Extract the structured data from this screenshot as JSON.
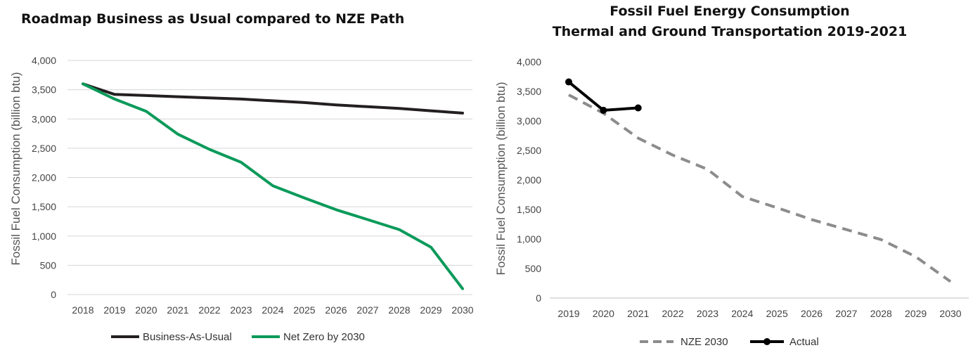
{
  "chart_data": [
    {
      "type": "line",
      "title": "Roadmap Business as Usual compared to NZE Path",
      "ylabel": "Fossil Fuel  Consumption (billion btu)",
      "xlabel": "",
      "x": [
        2018,
        2019,
        2020,
        2021,
        2022,
        2023,
        2024,
        2025,
        2026,
        2027,
        2028,
        2029,
        2030
      ],
      "ylim": [
        0,
        4000
      ],
      "yticks": [
        0,
        500,
        1000,
        1500,
        2000,
        2500,
        3000,
        3500,
        4000
      ],
      "ytick_labels": [
        "0",
        "500",
        "1,000",
        "1,500",
        "2,000",
        "2,500",
        "3,000",
        "3,500",
        "4,000"
      ],
      "grid": true,
      "legend_position": "bottom",
      "series": [
        {
          "name": "Business-As-Usual",
          "color": "#231f20",
          "style": "solid",
          "values": [
            3600,
            3420,
            3400,
            3380,
            3360,
            3340,
            3310,
            3280,
            3240,
            3210,
            3180,
            3140,
            3100
          ]
        },
        {
          "name": "Net Zero by 2030",
          "color": "#0b9a5a",
          "style": "solid",
          "values": [
            3600,
            3340,
            3130,
            2740,
            2480,
            2260,
            1860,
            1650,
            1450,
            1280,
            1110,
            810,
            100
          ]
        }
      ]
    },
    {
      "type": "line",
      "title": "Fossil Fuel Energy Consumption",
      "subtitle": "Thermal and Ground Transportation 2019-2021",
      "ylabel": "Fossil Fuel Consumption (billion btu)",
      "xlabel": "",
      "x": [
        2019,
        2020,
        2021,
        2022,
        2023,
        2024,
        2025,
        2026,
        2027,
        2028,
        2029,
        2030
      ],
      "ylim": [
        0,
        4000
      ],
      "yticks": [
        0,
        500,
        1000,
        1500,
        2000,
        2500,
        3000,
        3500,
        4000
      ],
      "ytick_labels": [
        "0",
        "500",
        "1,000",
        "1,500",
        "2,000",
        "2,500",
        "3,000",
        "3,500",
        "4,000"
      ],
      "grid": false,
      "legend_position": "bottom",
      "series": [
        {
          "name": "NZE 2030",
          "color": "#8c8c8c",
          "style": "dashed",
          "values": [
            3440,
            3130,
            2710,
            2420,
            2180,
            1720,
            1530,
            1330,
            1160,
            990,
            700,
            280
          ]
        },
        {
          "name": "Actual",
          "color": "#000000",
          "style": "solid-markers",
          "values": [
            3660,
            3180,
            3220,
            null,
            null,
            null,
            null,
            null,
            null,
            null,
            null,
            null
          ]
        }
      ]
    }
  ]
}
